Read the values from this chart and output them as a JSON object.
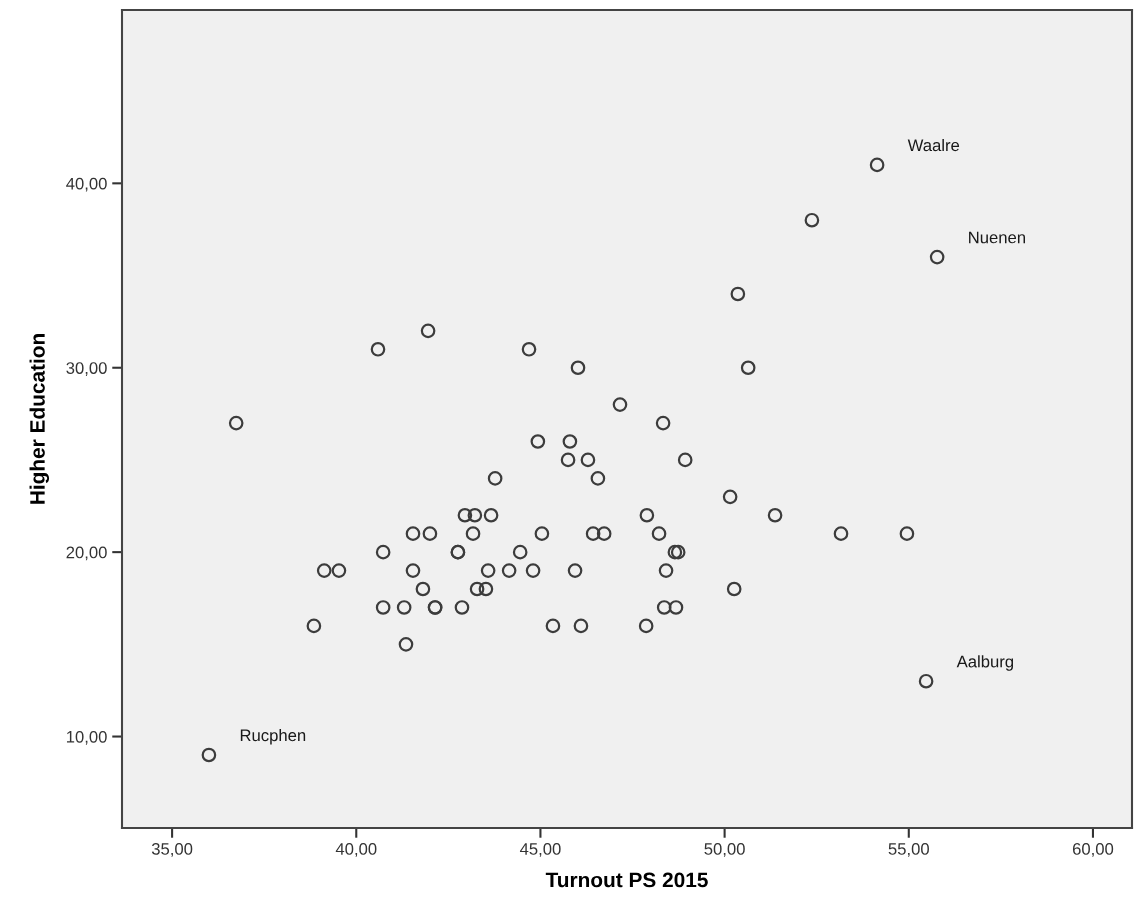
{
  "chart_data": {
    "type": "scatter",
    "xlabel": "Turnout PS 2015",
    "ylabel": "Higher Education",
    "x": [
      54.14,
      52.37,
      55.77,
      50.36,
      41.95,
      40.59,
      44.69,
      46.02,
      50.64,
      47.16,
      48.33,
      36.74,
      44.93,
      45.8,
      45.75,
      46.29,
      48.93,
      43.77,
      46.56,
      50.15,
      42.95,
      43.22,
      43.66,
      47.89,
      51.37,
      41.54,
      42.0,
      43.17,
      45.04,
      46.43,
      46.73,
      48.22,
      53.16,
      54.95,
      40.73,
      42.76,
      42.76,
      44.45,
      48.65,
      48.74,
      39.13,
      39.53,
      41.54,
      43.58,
      44.15,
      44.8,
      45.94,
      48.41,
      41.81,
      43.28,
      43.52,
      50.26,
      40.73,
      41.3,
      42.14,
      42.14,
      42.87,
      48.36,
      48.68,
      38.85,
      45.34,
      46.1,
      47.87,
      41.35,
      55.47,
      36.0
    ],
    "series": [
      {
        "color": "#3c3c3c",
        "values": [
          41,
          38,
          36,
          34,
          32,
          31,
          31,
          30,
          30,
          28,
          27,
          27,
          26,
          26,
          25,
          25,
          25,
          24,
          24,
          23,
          22,
          22,
          22,
          22,
          22,
          21,
          21,
          21,
          21,
          21,
          21,
          21,
          21,
          21,
          20,
          20,
          20,
          20,
          20,
          20,
          19,
          19,
          19,
          19,
          19,
          19,
          19,
          19,
          18,
          18,
          18,
          18,
          17,
          17,
          17,
          17,
          17,
          17,
          17,
          16,
          16,
          16,
          16,
          15,
          13,
          9
        ]
      }
    ],
    "annotations": [
      {
        "text": "Waalre",
        "x": 54.14,
        "y": 41
      },
      {
        "text": "Nuenen",
        "x": 55.77,
        "y": 36
      },
      {
        "text": "Aalburg",
        "x": 55.47,
        "y": 13
      },
      {
        "text": "Rucphen",
        "x": 36.0,
        "y": 9
      }
    ],
    "xlim": [
      33.64,
      61.06
    ],
    "ylim": [
      5.04,
      49.4
    ],
    "xticks": [
      {
        "value": 35,
        "label": "35,00"
      },
      {
        "value": 40,
        "label": "40,00"
      },
      {
        "value": 45,
        "label": "45,00"
      },
      {
        "value": 50,
        "label": "50,00"
      },
      {
        "value": 55,
        "label": "55,00"
      },
      {
        "value": 60,
        "label": "60,00"
      }
    ],
    "yticks": [
      {
        "value": 10,
        "label": "10,00"
      },
      {
        "value": 20,
        "label": "20,00"
      },
      {
        "value": 30,
        "label": "30,00"
      },
      {
        "value": 40,
        "label": "40,00"
      }
    ],
    "marker": "circle",
    "grid": false
  }
}
